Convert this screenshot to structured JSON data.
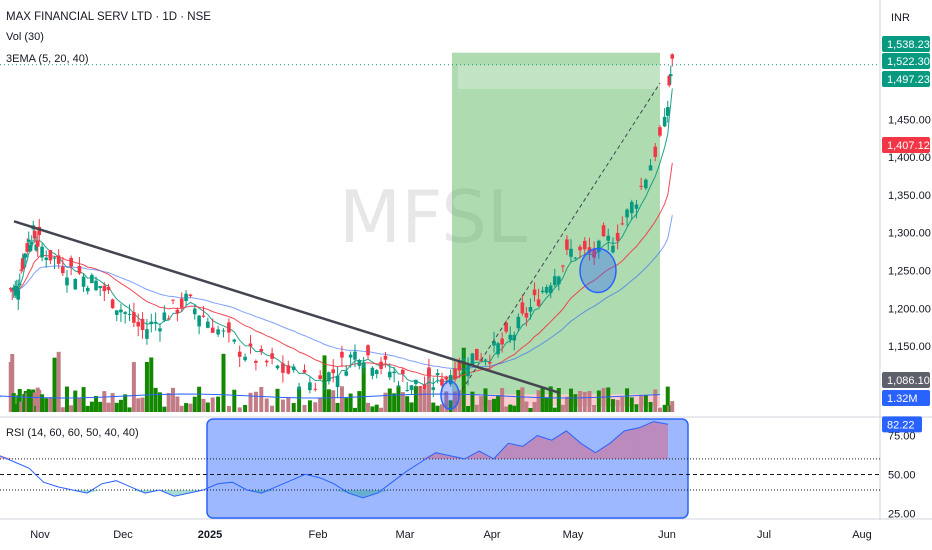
{
  "header": {
    "title": "MAX FINANCIAL SERV LTD · 1D · NSE",
    "volume_label": "Vol (30)",
    "ema_label": "3EMA (5, 20, 40)",
    "rsi_label": "RSI (14, 60, 60, 50, 40, 40)",
    "watermark": "MFSL",
    "currency": "INR"
  },
  "colors": {
    "up": "#089981",
    "down": "#f23645",
    "ema_fast": "#089981",
    "ema_mid": "#f23645",
    "ema_slow": "#2962ff",
    "trade_zone": "#4caf50",
    "rsi_line": "#2962ff",
    "rsi_band": "#2962ff",
    "volume_up": "#138700",
    "volume_down": "#c27c85"
  },
  "chart_data": [
    {
      "type": "candlestick",
      "title": "MAX FINANCIAL SERV LTD · 1D · NSE",
      "x_tick_labels": [
        "Nov",
        "Dec",
        "2025",
        "Feb",
        "Mar",
        "Apr",
        "May",
        "Jun",
        "Jul",
        "Aug"
      ],
      "y_tick_labels": [
        1150,
        1200,
        1250,
        1300,
        1350,
        1400,
        1450
      ],
      "ylim": [
        1072,
        1555
      ],
      "series": [
        {
          "type": "candlestick",
          "points": [
            {
              "month": "Oct",
              "close": 1225
            },
            {
              "month": "Oct",
              "close": 1270
            },
            {
              "month": "Oct",
              "close": 1300
            },
            {
              "month": "Oct",
              "close": 1285
            },
            {
              "month": "Nov",
              "close": 1260
            },
            {
              "month": "Nov",
              "close": 1245
            },
            {
              "month": "Nov",
              "close": 1230
            },
            {
              "month": "Nov",
              "close": 1200
            },
            {
              "month": "Dec",
              "close": 1170
            },
            {
              "month": "Dec",
              "close": 1190
            },
            {
              "month": "Dec",
              "close": 1210
            },
            {
              "month": "Dec",
              "close": 1185
            },
            {
              "month": "Jan",
              "close": 1150
            },
            {
              "month": "Jan",
              "close": 1130
            },
            {
              "month": "Jan",
              "close": 1115
            },
            {
              "month": "Jan",
              "close": 1100
            },
            {
              "month": "Feb",
              "close": 1120
            },
            {
              "month": "Feb",
              "close": 1145
            },
            {
              "month": "Feb",
              "close": 1125
            },
            {
              "month": "Feb",
              "close": 1105
            },
            {
              "month": "Mar",
              "close": 1095
            },
            {
              "month": "Mar",
              "close": 1110
            },
            {
              "month": "Mar",
              "close": 1135
            },
            {
              "month": "Mar",
              "close": 1140
            },
            {
              "month": "Apr",
              "close": 1160
            },
            {
              "month": "Apr",
              "close": 1200
            },
            {
              "month": "Apr",
              "close": 1240
            },
            {
              "month": "Apr",
              "close": 1275
            },
            {
              "month": "May",
              "close": 1270
            },
            {
              "month": "May",
              "close": 1300
            },
            {
              "month": "May",
              "close": 1360
            },
            {
              "month": "May",
              "close": 1440
            },
            {
              "month": "Jun",
              "close": 1497
            },
            {
              "month": "Jun",
              "close": 1522
            }
          ]
        },
        {
          "name": "EMA 5",
          "type": "line"
        },
        {
          "name": "EMA 20",
          "type": "line"
        },
        {
          "name": "EMA 40",
          "type": "line"
        }
      ],
      "annotations": {
        "trendline": {
          "from": {
            "month": "Oct",
            "price": 1315
          },
          "to": {
            "month": "Apr",
            "price": 1088
          }
        },
        "long_position": {
          "entry": 1086.1,
          "stop": 1070,
          "target": 1538.23,
          "from_month": "Mar",
          "to_month": "Jun"
        },
        "target_line_price": 1522.3,
        "circles": [
          {
            "month": "Mar",
            "price": 1085
          },
          {
            "month": "May",
            "price": 1250
          }
        ]
      },
      "price_badges": [
        {
          "label": "1,538.23",
          "color": "#089981"
        },
        {
          "label": "1,522.30",
          "color": "#089981"
        },
        {
          "label": "1,497.23",
          "color": "#089981"
        },
        {
          "label": "1,407.12",
          "color": "#f23645"
        },
        {
          "label": "1,086.10",
          "color": "#5d606b"
        },
        {
          "label": "1.32M",
          "color": "#2962ff"
        }
      ]
    },
    {
      "type": "line",
      "name": "RSI",
      "title": "RSI (14, 60, 60, 50, 40, 40)",
      "y_tick_labels": [
        25,
        50,
        75
      ],
      "ylim": [
        22,
        85
      ],
      "levels": [
        60,
        50,
        40
      ],
      "last_value_label": "82.22",
      "values": [
        62,
        58,
        54,
        45,
        42,
        40,
        38,
        44,
        46,
        42,
        38,
        40,
        36,
        38,
        40,
        44,
        45,
        40,
        38,
        42,
        46,
        50,
        48,
        44,
        38,
        35,
        38,
        45,
        52,
        58,
        64,
        62,
        60,
        65,
        60,
        70,
        68,
        75,
        72,
        78,
        70,
        64,
        70,
        78,
        80,
        84,
        82.22
      ]
    }
  ]
}
